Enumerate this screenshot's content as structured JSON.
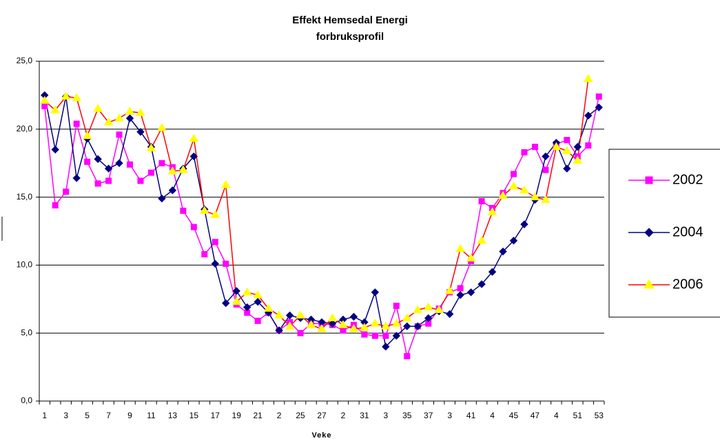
{
  "chart_data": {
    "type": "line",
    "title": [
      "Effekt Hemsedal Energi",
      "forbruksprofil"
    ],
    "x_label": "Veke",
    "categories": [
      "1",
      null,
      "3",
      null,
      "5",
      null,
      "7",
      null,
      "9",
      null,
      "11",
      null,
      "13",
      null,
      "15",
      null,
      "17",
      null,
      "19",
      null,
      "21",
      null,
      "2",
      null,
      "25",
      null,
      "27",
      null,
      "2",
      null,
      "31",
      null,
      "3",
      null,
      "35",
      null,
      "37",
      null,
      "3",
      null,
      "41",
      null,
      "4",
      null,
      "45",
      null,
      "47",
      null,
      "4",
      null,
      "51",
      null,
      "53"
    ],
    "ylim": [
      0,
      25
    ],
    "yticks": [
      {
        "value": 0,
        "label": "0,0"
      },
      {
        "value": 5,
        "label": "5,0"
      },
      {
        "value": 10,
        "label": "10,0"
      },
      {
        "value": 15,
        "label": "15,0"
      },
      {
        "value": 20,
        "label": "20,0"
      },
      {
        "value": 25,
        "label": "25,0"
      }
    ],
    "grid": true,
    "legend": "right",
    "series": [
      {
        "name": "2002",
        "color": "#ff00ff",
        "marker": "square",
        "marker_color": "#ff00ff",
        "values": [
          21.7,
          14.4,
          15.4,
          20.4,
          17.6,
          16.0,
          16.2,
          19.6,
          17.4,
          16.2,
          16.8,
          17.5,
          17.2,
          14.0,
          12.8,
          10.8,
          11.7,
          10.1,
          7.1,
          6.5,
          5.9,
          6.5,
          5.2,
          5.8,
          5.0,
          5.7,
          5.7,
          5.6,
          5.2,
          5.6,
          4.9,
          4.8,
          4.8,
          7.0,
          3.3,
          5.5,
          5.7,
          6.8,
          8.0,
          8.3,
          10.3,
          14.7,
          14.2,
          15.3,
          16.7,
          18.3,
          18.7,
          17.0,
          18.9,
          19.2,
          18.0,
          18.8,
          22.4
        ]
      },
      {
        "name": "2004",
        "color": "#000080",
        "marker": "diamond",
        "marker_color": "#000080",
        "values": [
          22.5,
          18.5,
          22.4,
          16.4,
          19.3,
          17.8,
          17.1,
          17.5,
          20.8,
          19.8,
          18.7,
          14.9,
          15.5,
          17.1,
          18.0,
          14.1,
          10.1,
          7.2,
          8.1,
          6.9,
          7.3,
          6.5,
          5.2,
          6.3,
          6.1,
          6.0,
          5.8,
          5.7,
          6.0,
          6.2,
          5.8,
          8.0,
          4.0,
          4.8,
          5.5,
          5.5,
          6.1,
          6.6,
          6.4,
          7.8,
          8.0,
          8.6,
          9.5,
          11.0,
          11.8,
          13.0,
          14.8,
          18.0,
          19.0,
          17.1,
          18.7,
          21.0,
          21.6
        ]
      },
      {
        "name": "2006",
        "color": "#ff0000",
        "marker": "triangle",
        "marker_color": "#ffff00",
        "values": [
          22.1,
          21.4,
          22.4,
          22.3,
          19.5,
          21.5,
          20.5,
          20.8,
          21.3,
          21.2,
          18.6,
          20.1,
          16.9,
          17.0,
          19.3,
          14.0,
          13.7,
          15.9,
          7.3,
          8.0,
          7.8,
          6.8,
          6.3,
          5.5,
          6.3,
          5.6,
          5.3,
          6.1,
          5.6,
          5.3,
          5.4,
          5.7,
          5.5,
          5.7,
          6.1,
          6.7,
          6.9,
          6.7,
          8.1,
          11.2,
          10.5,
          11.8,
          13.9,
          15.1,
          15.8,
          15.5,
          15.0,
          14.8,
          18.7,
          18.4,
          17.7,
          23.7,
          null
        ]
      }
    ]
  }
}
